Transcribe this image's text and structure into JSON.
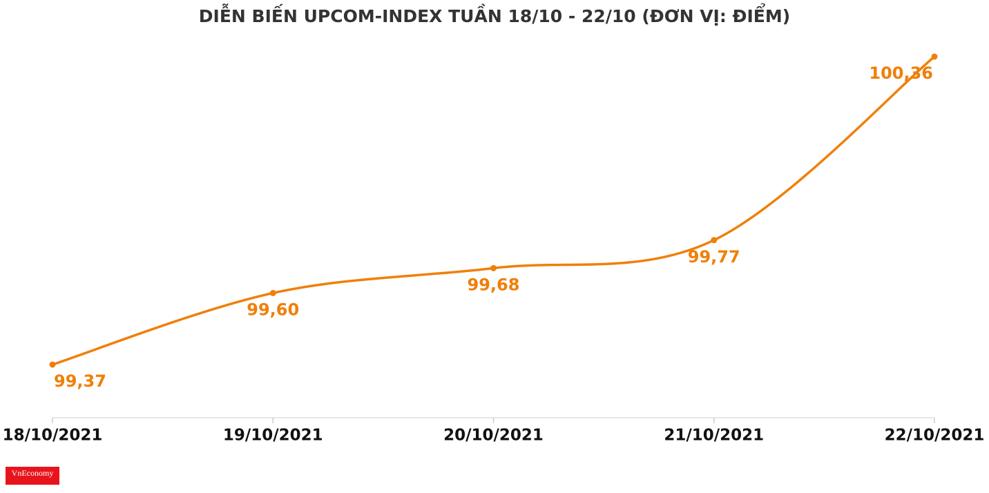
{
  "chart_data": {
    "type": "line",
    "title": "DIỄN BIẾN UPCOM-INDEX TUẦN 18/10 - 22/10 (ĐƠN VỊ: ĐIỂM)",
    "categories": [
      "18/10/2021",
      "19/10/2021",
      "20/10/2021",
      "21/10/2021",
      "22/10/2021"
    ],
    "values": [
      99.37,
      99.6,
      99.68,
      99.77,
      100.36
    ],
    "value_labels": [
      "99,37",
      "99,60",
      "99,68",
      "99,77",
      "100,36"
    ],
    "color": "#f07f09",
    "logo": "VnEconomy"
  }
}
